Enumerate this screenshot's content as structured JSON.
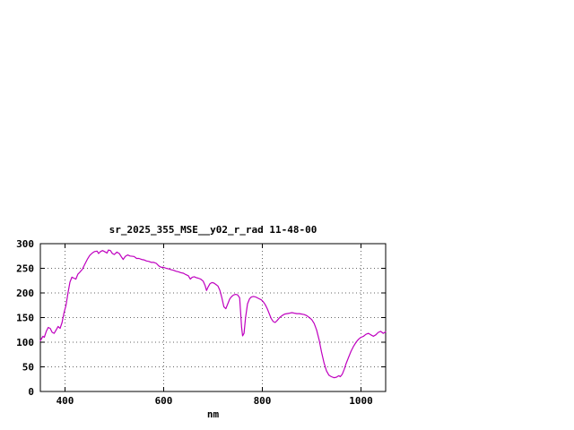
{
  "page": {
    "background": "#ffffff"
  },
  "chart_data": {
    "type": "line",
    "title": "sr_2025_355_MSE__y02_r_rad 11-48-00",
    "xlabel": "nm",
    "ylabel": "",
    "xlim": [
      350,
      1050
    ],
    "ylim": [
      0,
      300
    ],
    "xticks": [
      400,
      600,
      800,
      1000
    ],
    "yticks": [
      0,
      50,
      100,
      150,
      200,
      250,
      300
    ],
    "grid": true,
    "legend_position": "none",
    "colors": {
      "line": "#bf00bf",
      "axis": "#000000",
      "grid": "#666666",
      "text": "#000000"
    },
    "series": [
      {
        "name": "sr_2025_355_MSE__y02_r_rad",
        "x": [
          350,
          355,
          358,
          362,
          366,
          370,
          374,
          378,
          382,
          386,
          390,
          394,
          398,
          402,
          406,
          410,
          414,
          418,
          422,
          426,
          430,
          435,
          440,
          445,
          450,
          455,
          460,
          465,
          468,
          472,
          476,
          480,
          485,
          488,
          492,
          496,
          500,
          505,
          510,
          515,
          518,
          522,
          527,
          532,
          540,
          545,
          550,
          555,
          560,
          565,
          570,
          575,
          580,
          585,
          590,
          595,
          600,
          605,
          610,
          615,
          620,
          625,
          630,
          635,
          640,
          645,
          650,
          654,
          658,
          662,
          666,
          670,
          675,
          680,
          684,
          687,
          690,
          694,
          698,
          702,
          706,
          710,
          714,
          718,
          722,
          726,
          730,
          734,
          738,
          742,
          746,
          750,
          754,
          758,
          760,
          763,
          766,
          770,
          774,
          778,
          782,
          786,
          790,
          794,
          798,
          802,
          806,
          810,
          814,
          818,
          822,
          826,
          830,
          835,
          840,
          845,
          850,
          855,
          860,
          865,
          870,
          875,
          880,
          885,
          890,
          895,
          900,
          905,
          910,
          915,
          920,
          925,
          930,
          935,
          940,
          945,
          950,
          955,
          958,
          962,
          966,
          970,
          975,
          980,
          985,
          990,
          995,
          1000,
          1005,
          1010,
          1015,
          1020,
          1025,
          1030,
          1035,
          1040,
          1045,
          1050
        ],
        "y": [
          103,
          112,
          110,
          122,
          130,
          128,
          120,
          118,
          125,
          132,
          128,
          140,
          160,
          175,
          200,
          222,
          232,
          230,
          228,
          238,
          242,
          248,
          258,
          268,
          276,
          281,
          284,
          285,
          280,
          284,
          286,
          284,
          281,
          287,
          286,
          280,
          278,
          283,
          280,
          272,
          268,
          274,
          277,
          275,
          274,
          270,
          270,
          268,
          267,
          265,
          264,
          262,
          262,
          260,
          255,
          252,
          252,
          250,
          249,
          247,
          246,
          244,
          243,
          241,
          240,
          237,
          235,
          228,
          232,
          233,
          231,
          230,
          228,
          224,
          215,
          205,
          212,
          219,
          221,
          220,
          217,
          214,
          205,
          190,
          172,
          168,
          178,
          188,
          193,
          196,
          197,
          196,
          190,
          130,
          113,
          118,
          150,
          178,
          188,
          192,
          193,
          192,
          190,
          188,
          186,
          182,
          176,
          168,
          158,
          148,
          142,
          140,
          144,
          150,
          154,
          157,
          158,
          159,
          160,
          159,
          158,
          158,
          157,
          156,
          154,
          150,
          146,
          138,
          125,
          105,
          80,
          58,
          42,
          33,
          30,
          28,
          29,
          32,
          30,
          35,
          45,
          57,
          70,
          82,
          92,
          100,
          106,
          110,
          112,
          116,
          118,
          115,
          112,
          115,
          120,
          122,
          118,
          121
        ]
      }
    ]
  }
}
